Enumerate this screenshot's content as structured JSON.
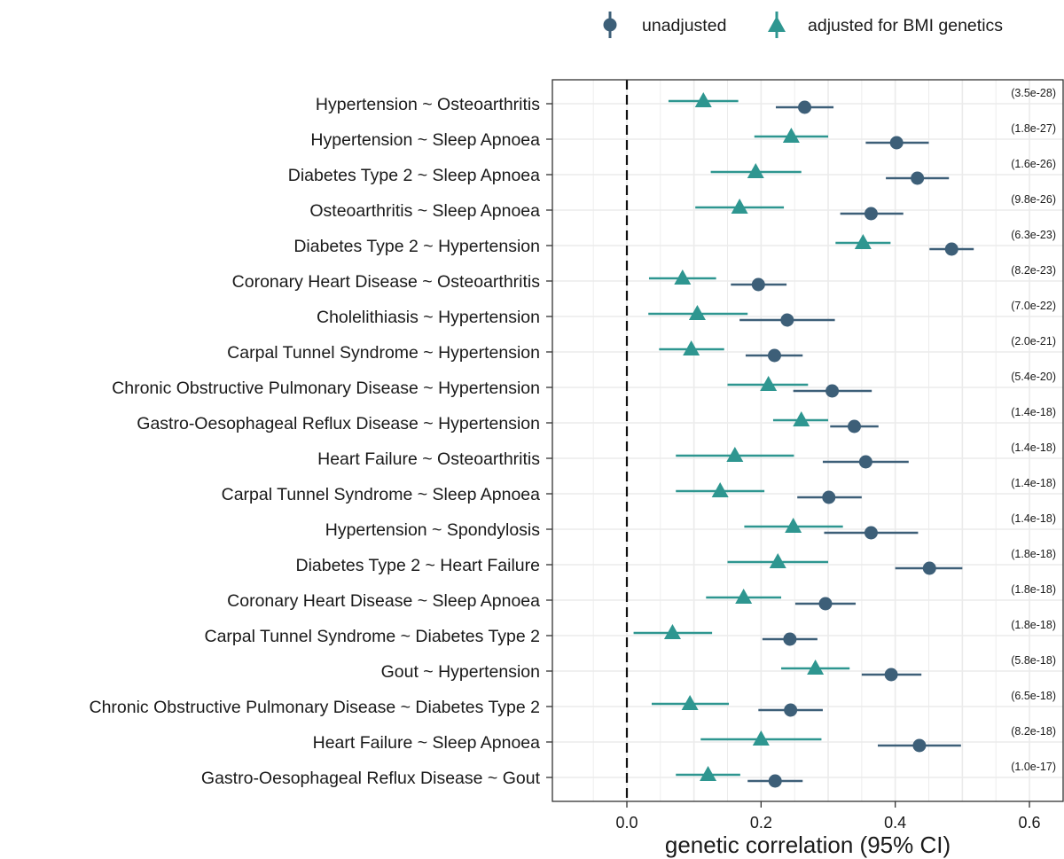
{
  "chart_data": {
    "type": "scatter",
    "xlabel": "genetic correlation (95% CI)",
    "ylabel": "",
    "xlim": [
      -0.11,
      0.62
    ],
    "xticks": [
      0.0,
      0.2,
      0.4,
      0.6
    ],
    "xtick_labels": [
      "0.0",
      "0.2",
      "0.4",
      "0.6"
    ],
    "reference_line_x": 0,
    "grid": true,
    "legend_position": "top",
    "series": [
      {
        "name": "unadjusted",
        "marker": "circle",
        "color": "#3d5f78"
      },
      {
        "name": "adjusted for BMI genetics",
        "marker": "triangle",
        "color": "#2e9690"
      }
    ],
    "rows": [
      {
        "label": "Hypertension ~ Osteoarthritis ",
        "pvalue": "(3.5e-28)",
        "unadjusted": {
          "value": 0.265,
          "lo": 0.222,
          "hi": 0.308
        },
        "adjusted": {
          "value": 0.114,
          "lo": 0.062,
          "hi": 0.166
        }
      },
      {
        "label": "Hypertension ~ Sleep Apnoea",
        "pvalue": "(1.8e-27)",
        "unadjusted": {
          "value": 0.402,
          "lo": 0.356,
          "hi": 0.45
        },
        "adjusted": {
          "value": 0.245,
          "lo": 0.19,
          "hi": 0.3
        }
      },
      {
        "label": "Diabetes Type 2 ~ Sleep Apnoea",
        "pvalue": "(1.6e-26)",
        "unadjusted": {
          "value": 0.433,
          "lo": 0.386,
          "hi": 0.48
        },
        "adjusted": {
          "value": 0.192,
          "lo": 0.125,
          "hi": 0.26
        }
      },
      {
        "label": "Osteoarthritis  ~ Sleep Apnoea",
        "pvalue": "(9.8e-26)",
        "unadjusted": {
          "value": 0.364,
          "lo": 0.318,
          "hi": 0.412
        },
        "adjusted": {
          "value": 0.168,
          "lo": 0.102,
          "hi": 0.234
        }
      },
      {
        "label": "Diabetes Type 2 ~ Hypertension",
        "pvalue": "(6.3e-23)",
        "unadjusted": {
          "value": 0.484,
          "lo": 0.451,
          "hi": 0.517
        },
        "adjusted": {
          "value": 0.352,
          "lo": 0.311,
          "hi": 0.393
        }
      },
      {
        "label": "Coronary Heart Disease ~ Osteoarthritis ",
        "pvalue": "(8.2e-23)",
        "unadjusted": {
          "value": 0.196,
          "lo": 0.155,
          "hi": 0.238
        },
        "adjusted": {
          "value": 0.083,
          "lo": 0.033,
          "hi": 0.133
        }
      },
      {
        "label": "Cholelithiasis ~ Hypertension",
        "pvalue": "(7.0e-22)",
        "unadjusted": {
          "value": 0.239,
          "lo": 0.168,
          "hi": 0.31
        },
        "adjusted": {
          "value": 0.105,
          "lo": 0.032,
          "hi": 0.18
        }
      },
      {
        "label": "Carpal Tunnel Syndrome ~ Hypertension",
        "pvalue": "(2.0e-21)",
        "unadjusted": {
          "value": 0.22,
          "lo": 0.177,
          "hi": 0.262
        },
        "adjusted": {
          "value": 0.096,
          "lo": 0.048,
          "hi": 0.145
        }
      },
      {
        "label": "Chronic Obstructive Pulmonary Disease ~ Hypertension",
        "pvalue": "(5.4e-20)",
        "unadjusted": {
          "value": 0.306,
          "lo": 0.248,
          "hi": 0.365
        },
        "adjusted": {
          "value": 0.211,
          "lo": 0.15,
          "hi": 0.27
        }
      },
      {
        "label": "Gastro-Oesophageal Reflux Disease ~ Hypertension",
        "pvalue": "(1.4e-18)",
        "unadjusted": {
          "value": 0.339,
          "lo": 0.303,
          "hi": 0.375
        },
        "adjusted": {
          "value": 0.26,
          "lo": 0.218,
          "hi": 0.3
        }
      },
      {
        "label": "Heart Failure ~ Osteoarthritis ",
        "pvalue": "(1.4e-18)",
        "unadjusted": {
          "value": 0.356,
          "lo": 0.292,
          "hi": 0.42
        },
        "adjusted": {
          "value": 0.161,
          "lo": 0.073,
          "hi": 0.249
        }
      },
      {
        "label": "Carpal Tunnel Syndrome ~ Sleep Apnoea",
        "pvalue": "(1.4e-18)",
        "unadjusted": {
          "value": 0.301,
          "lo": 0.254,
          "hi": 0.35
        },
        "adjusted": {
          "value": 0.139,
          "lo": 0.073,
          "hi": 0.205
        }
      },
      {
        "label": "Hypertension ~ Spondylosis",
        "pvalue": "(1.4e-18)",
        "unadjusted": {
          "value": 0.364,
          "lo": 0.294,
          "hi": 0.434
        },
        "adjusted": {
          "value": 0.248,
          "lo": 0.175,
          "hi": 0.322
        }
      },
      {
        "label": "Diabetes Type 2 ~ Heart Failure",
        "pvalue": "(1.8e-18)",
        "unadjusted": {
          "value": 0.451,
          "lo": 0.4,
          "hi": 0.5
        },
        "adjusted": {
          "value": 0.225,
          "lo": 0.15,
          "hi": 0.3
        }
      },
      {
        "label": "Coronary Heart Disease ~ Sleep Apnoea",
        "pvalue": "(1.8e-18)",
        "unadjusted": {
          "value": 0.296,
          "lo": 0.251,
          "hi": 0.341
        },
        "adjusted": {
          "value": 0.174,
          "lo": 0.118,
          "hi": 0.23
        }
      },
      {
        "label": "Carpal Tunnel Syndrome ~ Diabetes Type 2",
        "pvalue": "(1.8e-18)",
        "unadjusted": {
          "value": 0.243,
          "lo": 0.202,
          "hi": 0.284
        },
        "adjusted": {
          "value": 0.068,
          "lo": 0.01,
          "hi": 0.127
        }
      },
      {
        "label": "Gout ~ Hypertension",
        "pvalue": "(5.8e-18)",
        "unadjusted": {
          "value": 0.394,
          "lo": 0.35,
          "hi": 0.439
        },
        "adjusted": {
          "value": 0.281,
          "lo": 0.23,
          "hi": 0.332
        }
      },
      {
        "label": "Chronic Obstructive Pulmonary Disease ~ Diabetes Type 2",
        "pvalue": "(6.5e-18)",
        "unadjusted": {
          "value": 0.244,
          "lo": 0.196,
          "hi": 0.292
        },
        "adjusted": {
          "value": 0.094,
          "lo": 0.037,
          "hi": 0.152
        }
      },
      {
        "label": "Heart Failure ~ Sleep Apnoea",
        "pvalue": "(8.2e-18)",
        "unadjusted": {
          "value": 0.436,
          "lo": 0.374,
          "hi": 0.498
        },
        "adjusted": {
          "value": 0.2,
          "lo": 0.11,
          "hi": 0.29
        }
      },
      {
        "label": "Gastro-Oesophageal Reflux Disease ~ Gout",
        "pvalue": "(1.0e-17)",
        "unadjusted": {
          "value": 0.221,
          "lo": 0.18,
          "hi": 0.262
        },
        "adjusted": {
          "value": 0.121,
          "lo": 0.073,
          "hi": 0.169
        }
      }
    ]
  }
}
